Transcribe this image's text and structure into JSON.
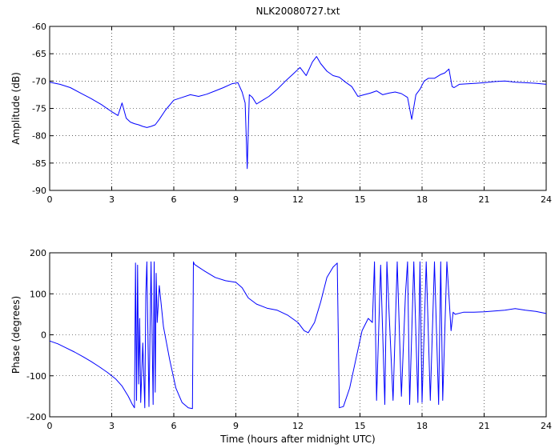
{
  "figure_title": "NLK20080727.txt",
  "chart_data": [
    {
      "type": "line",
      "title": "NLK20080727.txt",
      "xlabel": "",
      "ylabel": "Amplitude (dB)",
      "xlim": [
        0,
        24
      ],
      "ylim": [
        -90,
        -60
      ],
      "xticks": [
        0,
        3,
        6,
        9,
        12,
        15,
        18,
        21,
        24
      ],
      "yticks": [
        -90,
        -85,
        -80,
        -75,
        -70,
        -65,
        -60
      ],
      "grid": true,
      "line_color": "#0000ff",
      "series": [
        {
          "x": [
            0,
            0.5,
            1,
            1.5,
            2,
            2.5,
            3,
            3.3,
            3.5,
            3.7,
            3.9,
            4.1,
            4.3,
            4.5,
            4.7,
            4.9,
            5.1,
            5.3,
            5.6,
            6.0,
            6.4,
            6.8,
            7.2,
            7.6,
            8.0,
            8.4,
            8.8,
            9.1,
            9.3,
            9.45,
            9.55,
            9.65,
            9.8,
            10.0,
            10.3,
            10.6,
            11.0,
            11.4,
            11.8,
            12.1,
            12.4,
            12.7,
            12.9,
            13.1,
            13.4,
            13.7,
            14.0,
            14.3,
            14.6,
            14.9,
            15.2,
            15.5,
            15.8,
            16.1,
            16.4,
            16.7,
            17.0,
            17.3,
            17.5,
            17.7,
            17.9,
            18.1,
            18.3,
            18.6,
            18.9,
            19.1,
            19.3,
            19.45,
            19.55,
            19.8,
            20.2,
            20.6,
            21.0,
            21.5,
            22.0,
            22.5,
            23.0,
            23.5,
            24.0
          ],
          "y": [
            -70.2,
            -70.6,
            -71.2,
            -72.2,
            -73.2,
            -74.3,
            -75.6,
            -76.3,
            -74.0,
            -76.8,
            -77.5,
            -77.8,
            -78.0,
            -78.3,
            -78.5,
            -78.3,
            -78.0,
            -77.0,
            -75.3,
            -73.5,
            -73.0,
            -72.5,
            -72.8,
            -72.4,
            -71.8,
            -71.2,
            -70.5,
            -70.3,
            -72.0,
            -74.0,
            -86.0,
            -72.5,
            -73.0,
            -74.2,
            -73.5,
            -72.8,
            -71.5,
            -70.0,
            -68.6,
            -67.5,
            -69.0,
            -66.5,
            -65.5,
            -66.8,
            -68.2,
            -69.0,
            -69.3,
            -70.2,
            -71.0,
            -72.8,
            -72.5,
            -72.2,
            -71.8,
            -72.5,
            -72.2,
            -72.0,
            -72.3,
            -73.0,
            -77.0,
            -72.5,
            -71.5,
            -70.0,
            -69.5,
            -69.5,
            -68.8,
            -68.5,
            -67.8,
            -71.0,
            -71.2,
            -70.6,
            -70.5,
            -70.4,
            -70.3,
            -70.1,
            -70.0,
            -70.2,
            -70.3,
            -70.4,
            -70.6
          ]
        }
      ]
    },
    {
      "type": "line",
      "title": "",
      "xlabel": "Time (hours after midnight UTC)",
      "ylabel": "Phase (degrees)",
      "xlim": [
        0,
        24
      ],
      "ylim": [
        -200,
        200
      ],
      "xticks": [
        0,
        3,
        6,
        9,
        12,
        15,
        18,
        21,
        24
      ],
      "yticks": [
        -200,
        -100,
        0,
        100,
        200
      ],
      "grid": true,
      "line_color": "#0000ff",
      "series": [
        {
          "x": [
            0,
            0.4,
            0.8,
            1.2,
            1.6,
            2.0,
            2.4,
            2.8,
            3.2,
            3.5,
            3.8,
            4.0,
            4.1,
            4.15,
            4.2,
            4.25,
            4.3,
            4.35,
            4.4,
            4.5,
            4.6,
            4.65,
            4.7,
            4.8,
            4.9,
            5.0,
            5.05,
            5.1,
            5.15,
            5.2,
            5.3,
            5.5,
            5.8,
            6.1,
            6.4,
            6.7,
            6.9,
            6.95,
            7.0,
            7.2,
            7.5,
            8.0,
            8.5,
            9.0,
            9.3,
            9.6,
            10.0,
            10.5,
            11.0,
            11.5,
            12.0,
            12.3,
            12.5,
            12.8,
            13.1,
            13.4,
            13.7,
            13.9,
            14.0,
            14.2,
            14.5,
            14.8,
            15.1,
            15.4,
            15.6,
            15.7,
            15.8,
            16.0,
            16.2,
            16.3,
            16.4,
            16.6,
            16.8,
            17.0,
            17.2,
            17.3,
            17.4,
            17.6,
            17.8,
            17.9,
            18.0,
            18.2,
            18.4,
            18.6,
            18.8,
            18.9,
            19.0,
            19.2,
            19.4,
            19.5,
            19.6,
            20.0,
            20.5,
            21.0,
            21.5,
            22.0,
            22.5,
            23.0,
            23.5,
            24.0
          ],
          "y": [
            -15,
            -22,
            -32,
            -42,
            -53,
            -65,
            -78,
            -92,
            -108,
            -125,
            -150,
            -170,
            -178,
            175,
            -160,
            170,
            -120,
            40,
            -165,
            -20,
            -178,
            100,
            178,
            -175,
            178,
            -170,
            178,
            -140,
            150,
            30,
            120,
            20,
            -60,
            -130,
            -165,
            -178,
            -180,
            178,
            172,
            165,
            155,
            140,
            132,
            128,
            115,
            90,
            75,
            65,
            60,
            48,
            30,
            10,
            5,
            30,
            80,
            140,
            165,
            175,
            -178,
            -175,
            -130,
            -60,
            10,
            40,
            30,
            178,
            -160,
            170,
            -170,
            178,
            60,
            -160,
            178,
            -150,
            100,
            178,
            -170,
            178,
            -165,
            178,
            -165,
            178,
            -160,
            178,
            -170,
            178,
            -160,
            178,
            10,
            55,
            50,
            55,
            55,
            56,
            58,
            60,
            64,
            60,
            57,
            52
          ]
        }
      ]
    }
  ]
}
